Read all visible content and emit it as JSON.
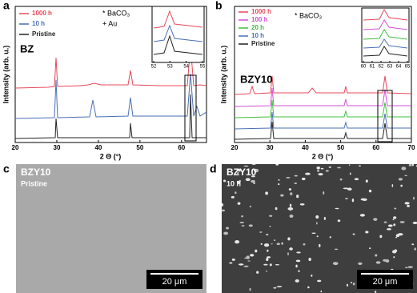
{
  "panels": [
    {
      "label": "a",
      "sample": "BZ",
      "xlabel": "2 Θ (°)",
      "ylabel": "Intensity (arb. u.)",
      "xlim": [
        20,
        66
      ],
      "xticks": [
        20,
        30,
        40,
        50,
        60
      ],
      "legend": [
        "1000 h",
        "10 h",
        "Pristine"
      ],
      "annotations": [
        "* BaCO₃",
        "+ Au"
      ],
      "inset_xlim": [
        52,
        55
      ],
      "inset_xticks": [
        52,
        53,
        54,
        55
      ]
    },
    {
      "label": "b",
      "sample": "BZY10",
      "xlabel": "2 Θ (°)",
      "ylabel": "Intensity (arb. u.)",
      "xlim": [
        20,
        70
      ],
      "xticks": [
        20,
        30,
        40,
        50,
        60,
        70
      ],
      "legend": [
        "1000 h",
        "100 h",
        "20 h",
        "10 h",
        "Pristine"
      ],
      "annotations": [
        "* BaCO₃"
      ],
      "inset_xlim": [
        60,
        65
      ],
      "inset_xticks": [
        60,
        61,
        62,
        63,
        64,
        65
      ]
    },
    {
      "label": "c",
      "sample": "BZY10",
      "condition": "Pristine",
      "scale_bar": "20 μm"
    },
    {
      "label": "d",
      "sample": "BZY10",
      "condition": "10 h",
      "scale_bar": "20 μm"
    }
  ]
}
